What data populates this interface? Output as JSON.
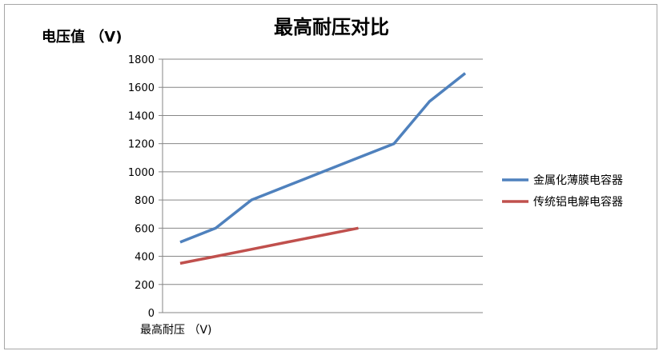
{
  "chart_data": {
    "type": "line",
    "title": "最高耐压对比",
    "ylabel": "电压值 （V)",
    "xlabel": "最高耐压 （V)",
    "ylim": [
      0,
      1800
    ],
    "yticks": [
      0,
      200,
      400,
      600,
      800,
      1000,
      1200,
      1400,
      1600,
      1800
    ],
    "grid": true,
    "legend_position": "right",
    "series": [
      {
        "name": "金属化薄膜电容器",
        "color": "#4f81bd",
        "values": [
          500,
          600,
          800,
          900,
          1000,
          1100,
          1200,
          1500,
          1700
        ]
      },
      {
        "name": "传统铝电解电容器",
        "color": "#c0504d",
        "values": [
          350,
          400,
          450,
          500,
          550,
          600
        ]
      }
    ]
  }
}
